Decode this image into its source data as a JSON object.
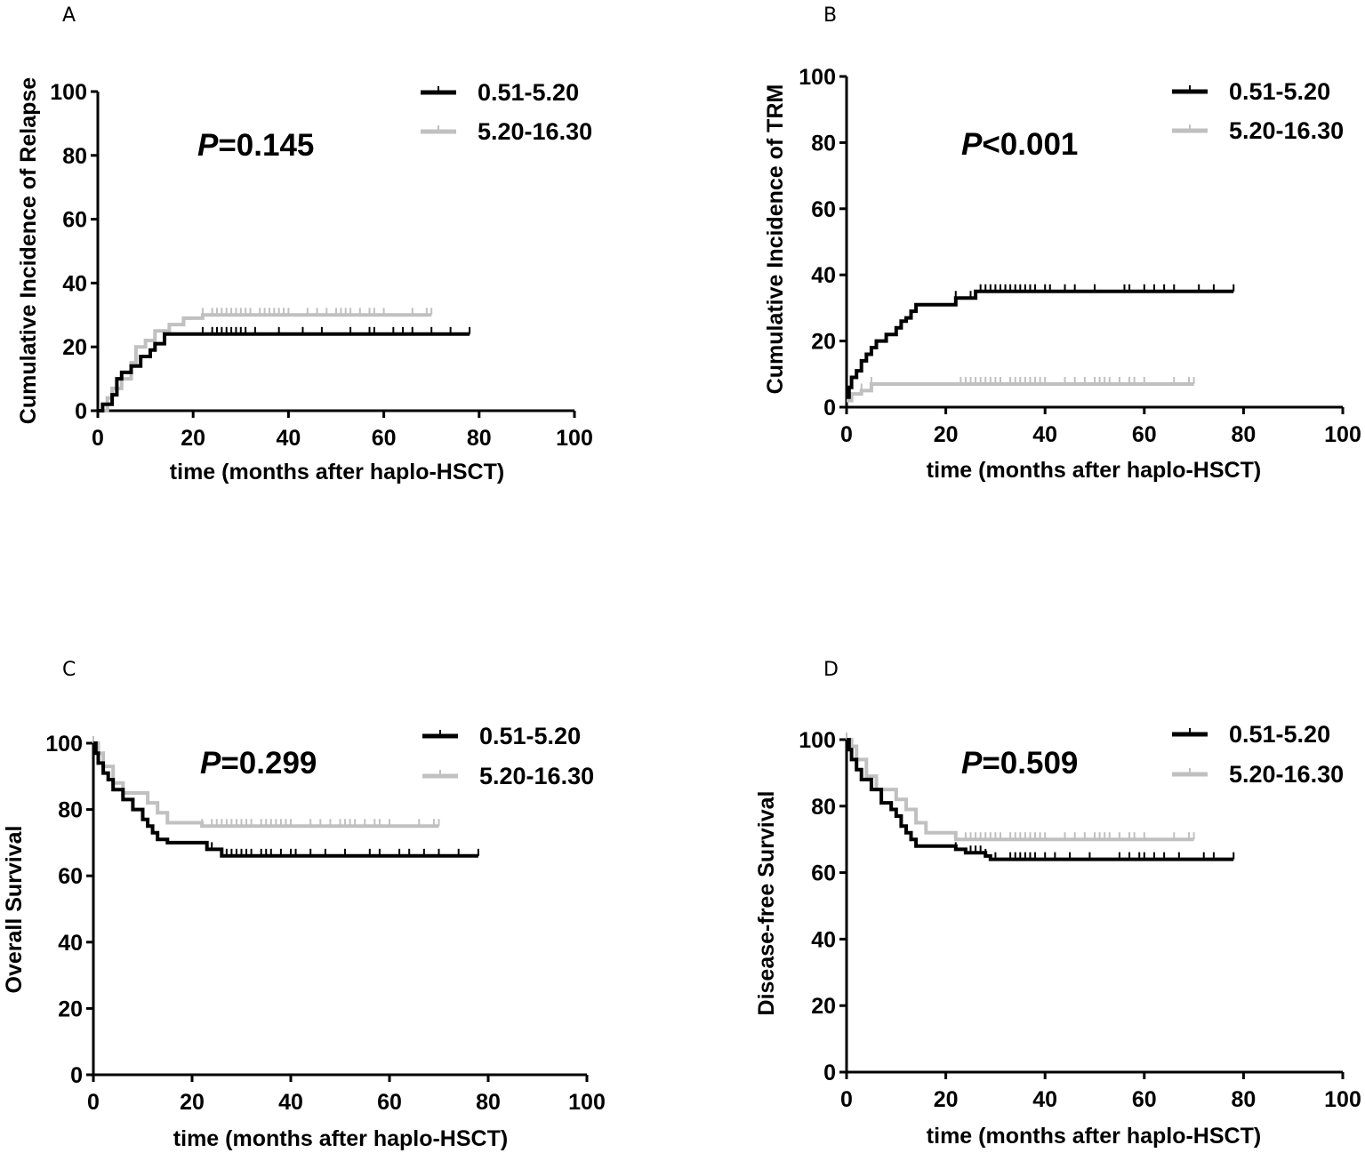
{
  "figure_colors": {
    "group1": "#000000",
    "group2": "#c0c0c0",
    "axis": "#000000"
  },
  "chart_data": [
    {
      "panel": "A",
      "type": "line",
      "subtype": "step",
      "ylabel": "Cumulative Incidence of Relapse",
      "xlabel": "time (months after haplo-HSCT)",
      "xlim": [
        0,
        100
      ],
      "ylim": [
        0,
        100
      ],
      "xticks": [
        0,
        20,
        40,
        60,
        80,
        100
      ],
      "yticks": [
        0,
        20,
        40,
        60,
        80,
        100
      ],
      "p_prefix": "P",
      "p_text": "=0.145",
      "legend_position": "top-right",
      "series": [
        {
          "name": "0.51-5.20",
          "color": "#000000",
          "x": [
            0,
            1,
            1,
            3,
            3,
            4,
            4,
            5,
            5,
            7,
            7,
            9,
            9,
            11,
            11,
            12,
            12,
            14,
            14,
            78
          ],
          "y": [
            0,
            0,
            2,
            2,
            5,
            5,
            10,
            10,
            12,
            12,
            14,
            14,
            17,
            17,
            19,
            19,
            21,
            21,
            24,
            24
          ],
          "censors": [
            22,
            24,
            25,
            26,
            27,
            28,
            29,
            30,
            31,
            33,
            38,
            43,
            47,
            53,
            57,
            58,
            62,
            64,
            66,
            70,
            74,
            78
          ]
        },
        {
          "name": "5.20-16.30",
          "color": "#c0c0c0",
          "x": [
            0,
            2,
            2,
            3,
            3,
            5,
            5,
            7,
            7,
            8,
            8,
            10,
            10,
            12,
            12,
            15,
            15,
            18,
            18,
            22,
            22,
            70
          ],
          "y": [
            0,
            0,
            4,
            4,
            7,
            7,
            10,
            10,
            15,
            15,
            20,
            20,
            22,
            22,
            25,
            25,
            27,
            27,
            29,
            29,
            30,
            30
          ],
          "censors": [
            22,
            24,
            25,
            26,
            27,
            28,
            29,
            30,
            31,
            32,
            34,
            35,
            36,
            37,
            38,
            39,
            40,
            44,
            46,
            48,
            50,
            51,
            52,
            53,
            55,
            57,
            58,
            60,
            66,
            69,
            70
          ]
        }
      ]
    },
    {
      "panel": "B",
      "type": "line",
      "subtype": "step",
      "ylabel": "Cumulative Incidence of TRM",
      "xlabel": "time (months after haplo-HSCT)",
      "xlim": [
        0,
        100
      ],
      "ylim": [
        0,
        100
      ],
      "xticks": [
        0,
        20,
        40,
        60,
        80,
        100
      ],
      "yticks": [
        0,
        20,
        40,
        60,
        80,
        100
      ],
      "p_prefix": "P",
      "p_text": "<0.001",
      "legend_position": "top-right",
      "series": [
        {
          "name": "0.51-5.20",
          "color": "#000000",
          "x": [
            0,
            0.5,
            0.5,
            1,
            1,
            2,
            2,
            3,
            3,
            4,
            4,
            5,
            5,
            6,
            6,
            8,
            8,
            10,
            10,
            11,
            11,
            12,
            12,
            13,
            13,
            14,
            14,
            22,
            22,
            26,
            26,
            78
          ],
          "y": [
            3,
            3,
            6,
            6,
            9,
            9,
            11,
            11,
            14,
            14,
            16,
            16,
            18,
            18,
            20,
            20,
            22,
            22,
            24,
            24,
            26,
            26,
            27,
            27,
            29,
            29,
            31,
            31,
            33,
            33,
            35,
            35
          ],
          "censors": [
            22,
            25,
            27,
            28,
            29,
            30,
            31,
            32,
            33,
            34,
            35,
            36,
            37,
            38,
            40,
            41,
            44,
            46,
            50,
            56,
            57,
            60,
            62,
            64,
            66,
            71,
            74,
            78
          ]
        },
        {
          "name": "5.20-16.30",
          "color": "#c0c0c0",
          "x": [
            0,
            1,
            1,
            3,
            3,
            5,
            5,
            70
          ],
          "y": [
            2,
            2,
            4,
            4,
            5,
            5,
            7,
            7
          ],
          "censors": [
            3,
            5,
            23,
            24,
            25,
            26,
            27,
            28,
            29,
            30,
            31,
            33,
            34,
            35,
            36,
            37,
            38,
            39,
            40,
            44,
            46,
            48,
            50,
            51,
            52,
            53,
            55,
            57,
            58,
            60,
            66,
            69,
            70
          ]
        }
      ]
    },
    {
      "panel": "C",
      "type": "line",
      "subtype": "step",
      "ylabel": "Overall Survival",
      "xlabel": "time (months after haplo-HSCT)",
      "xlim": [
        0,
        100
      ],
      "ylim": [
        0,
        100
      ],
      "xticks": [
        0,
        20,
        40,
        60,
        80,
        100
      ],
      "yticks": [
        0,
        20,
        40,
        60,
        80,
        100
      ],
      "p_prefix": "P",
      "p_text": "=0.299",
      "legend_position": "top-right",
      "series": [
        {
          "name": "0.51-5.20",
          "color": "#000000",
          "x": [
            0,
            0.5,
            0.5,
            1,
            1,
            2,
            2,
            3,
            3,
            4,
            4,
            6,
            6,
            8,
            8,
            10,
            10,
            11,
            11,
            12,
            12,
            13,
            13,
            15,
            15,
            23,
            23,
            26,
            26,
            78
          ],
          "y": [
            100,
            100,
            97,
            97,
            94,
            94,
            91,
            91,
            89,
            89,
            86,
            86,
            83,
            83,
            80,
            80,
            77,
            77,
            75,
            75,
            73,
            73,
            71,
            71,
            70,
            70,
            68,
            68,
            66,
            66
          ],
          "censors": [
            23,
            24,
            26,
            27,
            28,
            29,
            30,
            31,
            32,
            34,
            35,
            36,
            38,
            40,
            41,
            44,
            47,
            51,
            56,
            58,
            62,
            64,
            67,
            70,
            74,
            78
          ]
        },
        {
          "name": "5.20-16.30",
          "color": "#c0c0c0",
          "x": [
            0,
            1,
            1,
            2,
            2,
            4,
            4,
            6,
            6,
            11,
            11,
            13,
            13,
            15,
            15,
            22,
            22,
            70
          ],
          "y": [
            100,
            100,
            97,
            97,
            93,
            93,
            88,
            88,
            85,
            85,
            82,
            82,
            79,
            79,
            76,
            76,
            75,
            75
          ],
          "censors": [
            0,
            1,
            2,
            4,
            22,
            24,
            25,
            26,
            27,
            28,
            29,
            30,
            31,
            32,
            34,
            35,
            36,
            37,
            38,
            39,
            40,
            44,
            46,
            48,
            50,
            51,
            52,
            53,
            55,
            57,
            58,
            60,
            66,
            69,
            70
          ]
        }
      ]
    },
    {
      "panel": "D",
      "type": "line",
      "subtype": "step",
      "ylabel": "Disease-free Survival",
      "xlabel": "time (months after haplo-HSCT)",
      "xlim": [
        0,
        100
      ],
      "ylim": [
        0,
        100
      ],
      "xticks": [
        0,
        20,
        40,
        60,
        80,
        100
      ],
      "yticks": [
        0,
        20,
        40,
        60,
        80,
        100
      ],
      "p_prefix": "P",
      "p_text": "=0.509",
      "legend_position": "top-right",
      "series": [
        {
          "name": "0.51-5.20",
          "color": "#000000",
          "x": [
            0,
            0.5,
            0.5,
            1,
            1,
            2,
            2,
            3,
            3,
            5,
            5,
            7,
            7,
            9,
            9,
            10,
            10,
            11,
            11,
            12,
            12,
            13,
            13,
            14,
            14,
            22,
            22,
            24,
            24,
            28,
            28,
            29,
            29,
            78
          ],
          "y": [
            100,
            100,
            97,
            97,
            94,
            94,
            91,
            91,
            88,
            88,
            85,
            85,
            81,
            81,
            79,
            79,
            77,
            77,
            74,
            74,
            72,
            72,
            70,
            70,
            68,
            68,
            67,
            67,
            66,
            66,
            65,
            65,
            64,
            64
          ],
          "censors": [
            22,
            25,
            26,
            27,
            28,
            30,
            33,
            34,
            35,
            36,
            37,
            38,
            40,
            42,
            45,
            49,
            55,
            57,
            59,
            60,
            62,
            64,
            67,
            72,
            74,
            78
          ]
        },
        {
          "name": "5.20-16.30",
          "color": "#c0c0c0",
          "x": [
            0,
            1,
            1,
            2,
            2,
            4,
            4,
            6,
            6,
            10,
            10,
            12,
            12,
            14,
            14,
            16,
            16,
            22,
            22,
            70
          ],
          "y": [
            100,
            100,
            98,
            98,
            94,
            94,
            89,
            89,
            85,
            85,
            82,
            82,
            79,
            79,
            75,
            75,
            72,
            72,
            70,
            70
          ],
          "censors": [
            0,
            1,
            22,
            24,
            25,
            26,
            27,
            28,
            29,
            30,
            31,
            33,
            34,
            35,
            36,
            37,
            38,
            39,
            40,
            44,
            46,
            48,
            50,
            51,
            52,
            53,
            55,
            57,
            58,
            60,
            66,
            69,
            70
          ]
        }
      ]
    }
  ]
}
